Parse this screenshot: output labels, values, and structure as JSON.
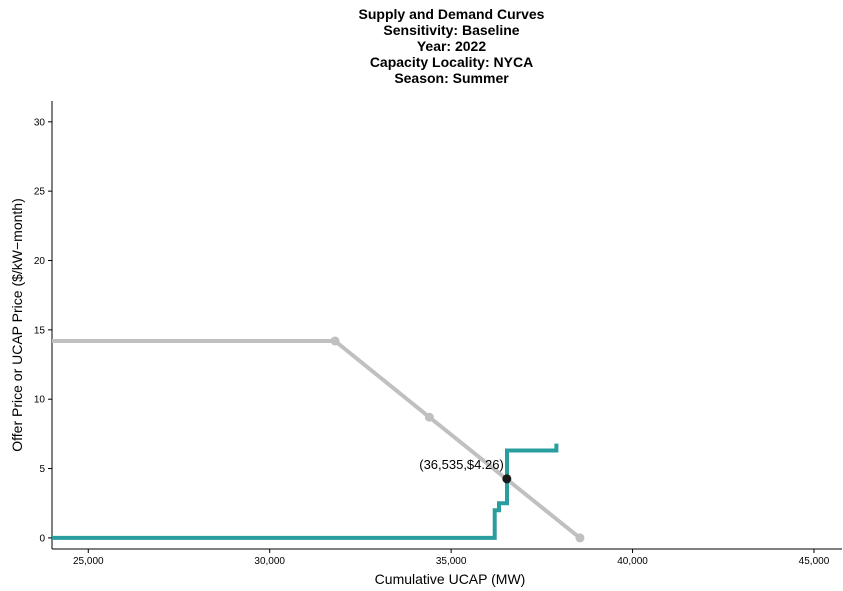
{
  "chart_data": {
    "type": "line",
    "title": "Supply and Demand Curves",
    "subtitle": [
      "Sensitivity: Baseline",
      "Year: 2022",
      "Capacity Locality: NYCA",
      "Season: Summer"
    ],
    "xlabel": "Cumulative UCAP (MW)",
    "ylabel": "Offer Price or UCAP Price ($/kW−month)",
    "xlim": [
      24000,
      45800
    ],
    "ylim": [
      -0.8,
      31.5
    ],
    "x_ticks": [
      25000,
      30000,
      35000,
      40000,
      45000
    ],
    "x_tick_labels": [
      "25,000",
      "30,000",
      "35,000",
      "40,000",
      "45,000"
    ],
    "y_ticks": [
      0,
      5,
      10,
      15,
      20,
      25,
      30
    ],
    "y_tick_labels": [
      "0",
      "5",
      "10",
      "15",
      "20",
      "25",
      "30"
    ],
    "grid": false,
    "colors": {
      "demand": "#c0c0c0",
      "supply": "#2a9d9e",
      "point": "#1a1a1a"
    },
    "series": [
      {
        "role": "demand",
        "values": [
          [
            24000,
            14.2
          ],
          [
            31800,
            14.2
          ],
          [
            34400,
            8.7
          ],
          [
            38550,
            0.0
          ]
        ],
        "markers": [
          [
            31800,
            14.2
          ],
          [
            34400,
            8.7
          ],
          [
            38550,
            0.0
          ]
        ]
      },
      {
        "role": "supply",
        "values": [
          [
            24000,
            0.0
          ],
          [
            36200,
            0.0
          ],
          [
            36200,
            2.0
          ],
          [
            36320,
            2.0
          ],
          [
            36320,
            2.5
          ],
          [
            36540,
            2.5
          ],
          [
            36540,
            6.3
          ],
          [
            37900,
            6.3
          ],
          [
            37900,
            6.8
          ]
        ]
      }
    ],
    "intersection": {
      "x": 36535,
      "y": 4.26,
      "label": "(36,535,$4.26)"
    }
  }
}
